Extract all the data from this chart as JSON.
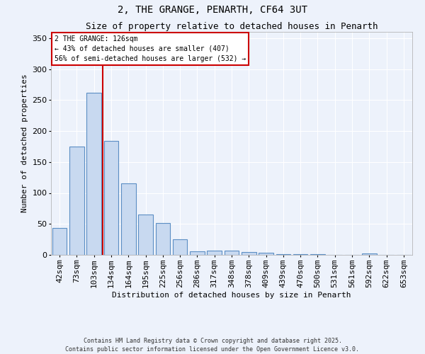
{
  "title": "2, THE GRANGE, PENARTH, CF64 3UT",
  "subtitle": "Size of property relative to detached houses in Penarth",
  "xlabel": "Distribution of detached houses by size in Penarth",
  "ylabel": "Number of detached properties",
  "categories": [
    "42sqm",
    "73sqm",
    "103sqm",
    "134sqm",
    "164sqm",
    "195sqm",
    "225sqm",
    "256sqm",
    "286sqm",
    "317sqm",
    "348sqm",
    "378sqm",
    "409sqm",
    "439sqm",
    "470sqm",
    "500sqm",
    "531sqm",
    "561sqm",
    "592sqm",
    "622sqm",
    "653sqm"
  ],
  "values": [
    44,
    175,
    262,
    184,
    115,
    65,
    52,
    25,
    6,
    7,
    7,
    5,
    3,
    1,
    1,
    1,
    0,
    0,
    2,
    0,
    0
  ],
  "bar_color": "#c8d9f0",
  "bar_edge_color": "#5b8ec4",
  "background_color": "#edf2fb",
  "grid_color": "#ffffff",
  "vline_color": "#cc0000",
  "vline_x_index": 2.5,
  "annotation_text": "2 THE GRANGE: 126sqm\n← 43% of detached houses are smaller (407)\n56% of semi-detached houses are larger (532) →",
  "annotation_box_facecolor": "#ffffff",
  "annotation_box_edgecolor": "#cc0000",
  "footnote_line1": "Contains HM Land Registry data © Crown copyright and database right 2025.",
  "footnote_line2": "Contains public sector information licensed under the Open Government Licence v3.0.",
  "ylim": [
    0,
    360
  ],
  "yticks": [
    0,
    50,
    100,
    150,
    200,
    250,
    300,
    350
  ],
  "title_fontsize": 10,
  "subtitle_fontsize": 9,
  "axis_label_fontsize": 8,
  "tick_fontsize": 8,
  "annotation_fontsize": 7,
  "footnote_fontsize": 6
}
